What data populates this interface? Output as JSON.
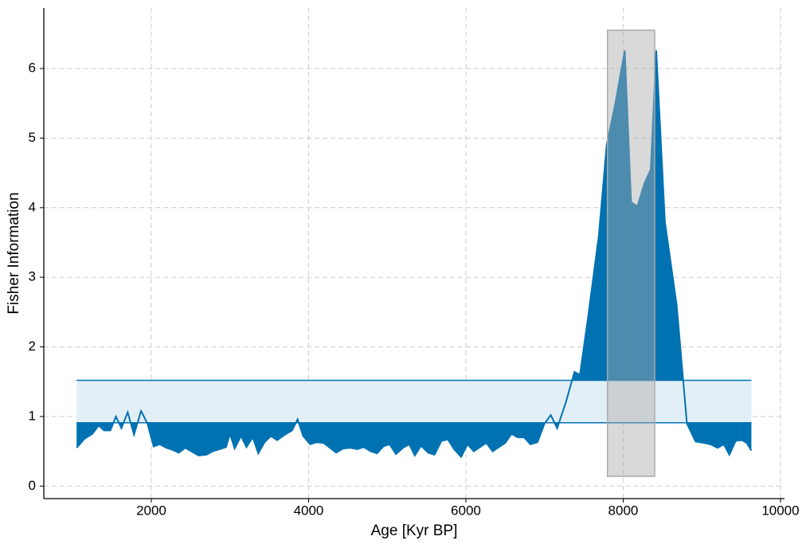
{
  "chart_data": {
    "type": "line",
    "xlabel": "Age [Kyr BP]",
    "ylabel": "Fisher Information",
    "x": [
      1050,
      1150,
      1250,
      1330,
      1400,
      1480,
      1550,
      1620,
      1700,
      1780,
      1870,
      1950,
      2030,
      2110,
      2190,
      2270,
      2350,
      2430,
      2510,
      2600,
      2700,
      2780,
      2870,
      2950,
      3000,
      3060,
      3140,
      3210,
      3290,
      3360,
      3440,
      3520,
      3600,
      3700,
      3790,
      3860,
      3930,
      4020,
      4100,
      4190,
      4270,
      4350,
      4440,
      4530,
      4620,
      4700,
      4790,
      4870,
      4950,
      5030,
      5110,
      5200,
      5280,
      5350,
      5430,
      5520,
      5600,
      5690,
      5770,
      5850,
      5940,
      6020,
      6100,
      6180,
      6260,
      6340,
      6420,
      6500,
      6580,
      6660,
      6740,
      6820,
      6910,
      7000,
      7080,
      7160,
      7270,
      7380,
      7450,
      7550,
      7690,
      7790,
      7900,
      8020,
      8100,
      8180,
      8270,
      8350,
      8420,
      8530,
      8680,
      8810,
      8920,
      9030,
      9110,
      9200,
      9280,
      9350,
      9430,
      9510,
      9570,
      9630
    ],
    "series": [
      {
        "color": "#0072b2",
        "values": [
          0.55,
          0.68,
          0.75,
          0.87,
          0.8,
          0.8,
          1.0,
          0.83,
          1.06,
          0.74,
          1.08,
          0.9,
          0.57,
          0.6,
          0.55,
          0.52,
          0.48,
          0.55,
          0.5,
          0.44,
          0.45,
          0.5,
          0.53,
          0.56,
          0.75,
          0.54,
          0.72,
          0.56,
          0.7,
          0.47,
          0.63,
          0.72,
          0.66,
          0.74,
          0.8,
          0.96,
          0.72,
          0.6,
          0.63,
          0.62,
          0.55,
          0.48,
          0.54,
          0.55,
          0.53,
          0.56,
          0.5,
          0.47,
          0.57,
          0.6,
          0.46,
          0.55,
          0.6,
          0.44,
          0.58,
          0.48,
          0.45,
          0.65,
          0.67,
          0.53,
          0.42,
          0.6,
          0.5,
          0.56,
          0.62,
          0.5,
          0.56,
          0.62,
          0.75,
          0.7,
          0.7,
          0.6,
          0.63,
          0.9,
          1.02,
          0.83,
          1.2,
          1.64,
          1.6,
          2.4,
          3.6,
          4.9,
          5.5,
          6.26,
          4.08,
          4.02,
          4.35,
          4.55,
          6.26,
          3.8,
          2.6,
          0.9,
          0.64,
          0.62,
          0.6,
          0.55,
          0.6,
          0.45,
          0.65,
          0.66,
          0.62,
          0.51
        ]
      }
    ],
    "band": {
      "x": [
        1050,
        9630
      ],
      "lower": 0.91,
      "upper": 1.52,
      "color": "#0072b2",
      "fill": "#e3eff6"
    },
    "highlight": {
      "x": [
        7800,
        8400
      ],
      "y": [
        0.14,
        6.55
      ],
      "color": "#aaaaaa"
    },
    "xlim": [
      633,
      10051
    ],
    "ylim": [
      -0.18,
      6.87
    ],
    "xticks": [
      2000,
      4000,
      6000,
      8000,
      10000
    ],
    "yticks": [
      0,
      1,
      2,
      3,
      4,
      5,
      6
    ],
    "grid": true
  }
}
